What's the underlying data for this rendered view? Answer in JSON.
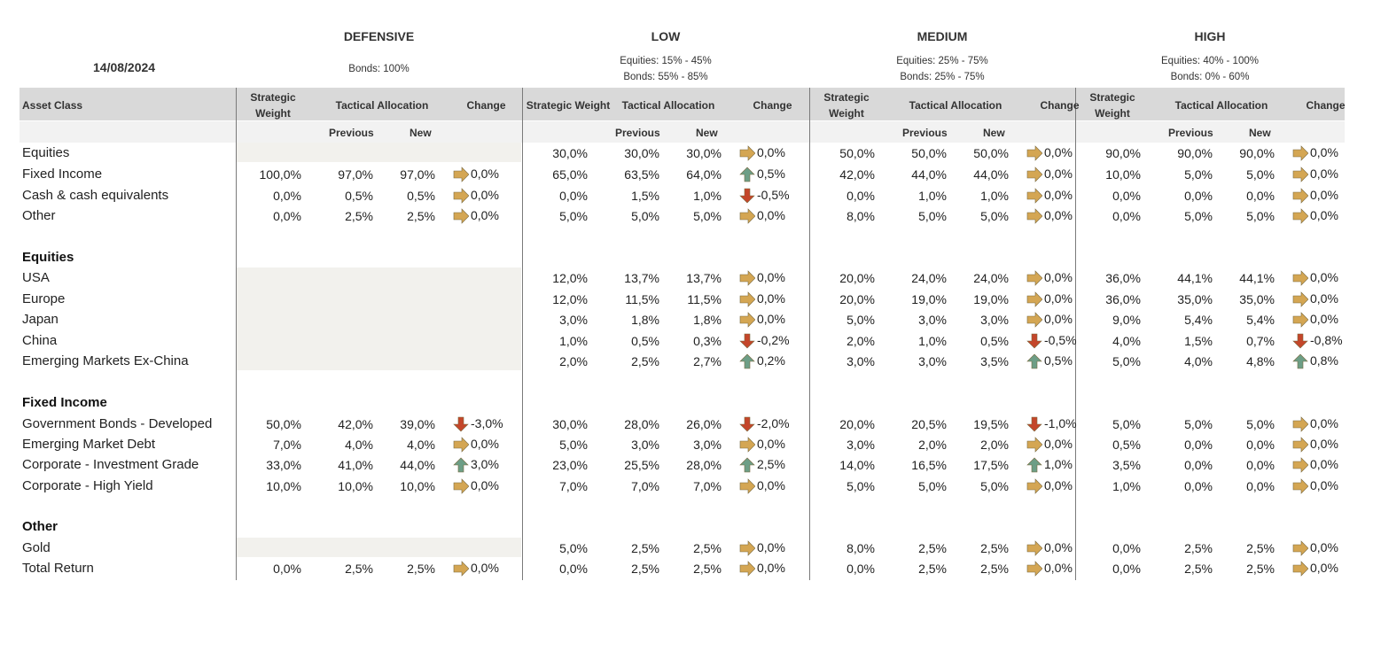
{
  "date": "14/08/2024",
  "header": {
    "asset_class": "Asset Class",
    "strategic_weight_two_line": [
      "Strategic",
      "Weight"
    ],
    "strategic_weight_one_line": "Strategic Weight",
    "tactical_allocation": "Tactical Allocation",
    "change": "Change",
    "previous": "Previous",
    "new": "New"
  },
  "profiles": [
    {
      "name": "DEFENSIVE",
      "notes": [
        "Bonds: 100%"
      ]
    },
    {
      "name": "LOW",
      "notes": [
        "Equities: 15% - 45%",
        "Bonds: 55% - 85%"
      ]
    },
    {
      "name": "MEDIUM",
      "notes": [
        "Equities: 25% - 75%",
        "Bonds: 25% - 75%"
      ]
    },
    {
      "name": "HIGH",
      "notes": [
        "Equities: 40% - 100%",
        "Bonds: 0% - 60%"
      ]
    }
  ],
  "arrow_colors": {
    "up": "#6d9e86",
    "down": "#c4462a",
    "flat": "#d4a653"
  },
  "rows": [
    {
      "label": "Equities",
      "type": "item",
      "values": [
        null,
        [
          "30,0%",
          "30,0%",
          "30,0%",
          "flat",
          "0,0%"
        ],
        [
          "50,0%",
          "50,0%",
          "50,0%",
          "flat",
          "0,0%"
        ],
        [
          "90,0%",
          "90,0%",
          "90,0%",
          "flat",
          "0,0%"
        ]
      ]
    },
    {
      "label": "Fixed Income",
      "type": "item",
      "values": [
        [
          "100,0%",
          "97,0%",
          "97,0%",
          "flat",
          "0,0%"
        ],
        [
          "65,0%",
          "63,5%",
          "64,0%",
          "up",
          "0,5%"
        ],
        [
          "42,0%",
          "44,0%",
          "44,0%",
          "flat",
          "0,0%"
        ],
        [
          "10,0%",
          "5,0%",
          "5,0%",
          "flat",
          "0,0%"
        ]
      ]
    },
    {
      "label": "Cash & cash equivalents",
      "type": "item",
      "values": [
        [
          "0,0%",
          "0,5%",
          "0,5%",
          "flat",
          "0,0%"
        ],
        [
          "0,0%",
          "1,5%",
          "1,0%",
          "down",
          "-0,5%"
        ],
        [
          "0,0%",
          "1,0%",
          "1,0%",
          "flat",
          "0,0%"
        ],
        [
          "0,0%",
          "0,0%",
          "0,0%",
          "flat",
          "0,0%"
        ]
      ]
    },
    {
      "label": "Other",
      "type": "item",
      "values": [
        [
          "0,0%",
          "2,5%",
          "2,5%",
          "flat",
          "0,0%"
        ],
        [
          "5,0%",
          "5,0%",
          "5,0%",
          "flat",
          "0,0%"
        ],
        [
          "8,0%",
          "5,0%",
          "5,0%",
          "flat",
          "0,0%"
        ],
        [
          "0,0%",
          "5,0%",
          "5,0%",
          "flat",
          "0,0%"
        ]
      ]
    },
    {
      "label": "Equities",
      "type": "section"
    },
    {
      "label": "USA",
      "type": "item",
      "values": [
        null,
        [
          "12,0%",
          "13,7%",
          "13,7%",
          "flat",
          "0,0%"
        ],
        [
          "20,0%",
          "24,0%",
          "24,0%",
          "flat",
          "0,0%"
        ],
        [
          "36,0%",
          "44,1%",
          "44,1%",
          "flat",
          "0,0%"
        ]
      ]
    },
    {
      "label": "Europe",
      "type": "item",
      "values": [
        null,
        [
          "12,0%",
          "11,5%",
          "11,5%",
          "flat",
          "0,0%"
        ],
        [
          "20,0%",
          "19,0%",
          "19,0%",
          "flat",
          "0,0%"
        ],
        [
          "36,0%",
          "35,0%",
          "35,0%",
          "flat",
          "0,0%"
        ]
      ]
    },
    {
      "label": "Japan",
      "type": "item",
      "values": [
        null,
        [
          "3,0%",
          "1,8%",
          "1,8%",
          "flat",
          "0,0%"
        ],
        [
          "5,0%",
          "3,0%",
          "3,0%",
          "flat",
          "0,0%"
        ],
        [
          "9,0%",
          "5,4%",
          "5,4%",
          "flat",
          "0,0%"
        ]
      ]
    },
    {
      "label": "China",
      "type": "item",
      "values": [
        null,
        [
          "1,0%",
          "0,5%",
          "0,3%",
          "down",
          "-0,2%"
        ],
        [
          "2,0%",
          "1,0%",
          "0,5%",
          "down",
          "-0,5%"
        ],
        [
          "4,0%",
          "1,5%",
          "0,7%",
          "down",
          "-0,8%"
        ]
      ]
    },
    {
      "label": "Emerging Markets Ex-China",
      "type": "item",
      "values": [
        null,
        [
          "2,0%",
          "2,5%",
          "2,7%",
          "up",
          "0,2%"
        ],
        [
          "3,0%",
          "3,0%",
          "3,5%",
          "up",
          "0,5%"
        ],
        [
          "5,0%",
          "4,0%",
          "4,8%",
          "up",
          "0,8%"
        ]
      ]
    },
    {
      "label": "Fixed Income",
      "type": "section"
    },
    {
      "label": "Government Bonds - Developed",
      "type": "item",
      "values": [
        [
          "50,0%",
          "42,0%",
          "39,0%",
          "down",
          "-3,0%"
        ],
        [
          "30,0%",
          "28,0%",
          "26,0%",
          "down",
          "-2,0%"
        ],
        [
          "20,0%",
          "20,5%",
          "19,5%",
          "down",
          "-1,0%"
        ],
        [
          "5,0%",
          "5,0%",
          "5,0%",
          "flat",
          "0,0%"
        ]
      ]
    },
    {
      "label": "Emerging Market Debt",
      "type": "item",
      "values": [
        [
          "7,0%",
          "4,0%",
          "4,0%",
          "flat",
          "0,0%"
        ],
        [
          "5,0%",
          "3,0%",
          "3,0%",
          "flat",
          "0,0%"
        ],
        [
          "3,0%",
          "2,0%",
          "2,0%",
          "flat",
          "0,0%"
        ],
        [
          "0,5%",
          "0,0%",
          "0,0%",
          "flat",
          "0,0%"
        ]
      ]
    },
    {
      "label": "Corporate - Investment Grade",
      "type": "item",
      "values": [
        [
          "33,0%",
          "41,0%",
          "44,0%",
          "up",
          "3,0%"
        ],
        [
          "23,0%",
          "25,5%",
          "28,0%",
          "up",
          "2,5%"
        ],
        [
          "14,0%",
          "16,5%",
          "17,5%",
          "up",
          "1,0%"
        ],
        [
          "3,5%",
          "0,0%",
          "0,0%",
          "flat",
          "0,0%"
        ]
      ]
    },
    {
      "label": "Corporate - High Yield",
      "type": "item",
      "values": [
        [
          "10,0%",
          "10,0%",
          "10,0%",
          "flat",
          "0,0%"
        ],
        [
          "7,0%",
          "7,0%",
          "7,0%",
          "flat",
          "0,0%"
        ],
        [
          "5,0%",
          "5,0%",
          "5,0%",
          "flat",
          "0,0%"
        ],
        [
          "1,0%",
          "0,0%",
          "0,0%",
          "flat",
          "0,0%"
        ]
      ]
    },
    {
      "label": "Other",
      "type": "section"
    },
    {
      "label": "Gold",
      "type": "item",
      "values": [
        null,
        [
          "5,0%",
          "2,5%",
          "2,5%",
          "flat",
          "0,0%"
        ],
        [
          "8,0%",
          "2,5%",
          "2,5%",
          "flat",
          "0,0%"
        ],
        [
          "0,0%",
          "2,5%",
          "2,5%",
          "flat",
          "0,0%"
        ]
      ]
    },
    {
      "label": "Total Return",
      "type": "item",
      "values": [
        [
          "0,0%",
          "2,5%",
          "2,5%",
          "flat",
          "0,0%"
        ],
        [
          "0,0%",
          "2,5%",
          "2,5%",
          "flat",
          "0,0%"
        ],
        [
          "0,0%",
          "2,5%",
          "2,5%",
          "flat",
          "0,0%"
        ],
        [
          "0,0%",
          "2,5%",
          "2,5%",
          "flat",
          "0,0%"
        ]
      ]
    }
  ]
}
